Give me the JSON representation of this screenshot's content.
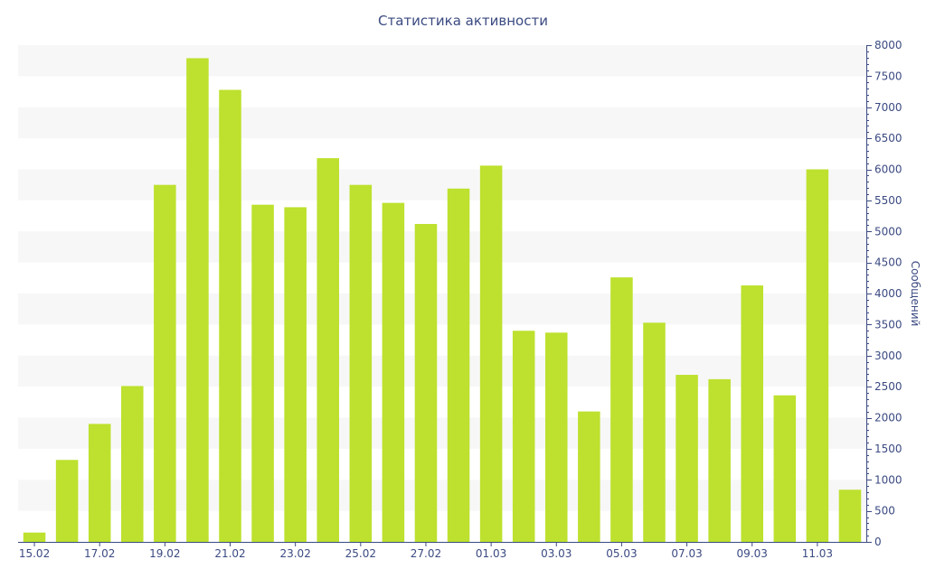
{
  "chart_data": {
    "type": "bar",
    "title": "Статистика активности",
    "ylabel": "Сообщений",
    "xlabel": "",
    "ylim": [
      0,
      8000
    ],
    "y_ticks": [
      0,
      500,
      1000,
      1500,
      2000,
      2500,
      3000,
      3500,
      4000,
      4500,
      5000,
      5500,
      6000,
      6500,
      7000,
      7500,
      8000
    ],
    "y_axis_side": "right",
    "grid": "alternating horizontal bands",
    "categories": [
      "15.02",
      "16.02",
      "17.02",
      "18.02",
      "19.02",
      "20.02",
      "21.02",
      "22.02",
      "23.02",
      "24.02",
      "25.02",
      "26.02",
      "27.02",
      "28.02",
      "01.03",
      "02.03",
      "03.03",
      "04.03",
      "05.03",
      "06.03",
      "07.03",
      "08.03",
      "09.03",
      "10.03",
      "11.03",
      "12.03"
    ],
    "x_tick_labels": [
      "15.02",
      "17.02",
      "19.02",
      "21.02",
      "23.02",
      "25.02",
      "27.02",
      "01.03",
      "03.03",
      "05.03",
      "07.03",
      "09.03",
      "11.03"
    ],
    "values": [
      150,
      1320,
      1900,
      2510,
      5750,
      7790,
      7280,
      5430,
      5390,
      6180,
      5750,
      5460,
      5120,
      5690,
      6060,
      3400,
      3370,
      2100,
      4260,
      3530,
      2690,
      2620,
      4130,
      2360,
      6000,
      840
    ],
    "bar_color": "#bde12e",
    "band_color": "#f7f7f7",
    "axis_color": "#3b4a82"
  }
}
